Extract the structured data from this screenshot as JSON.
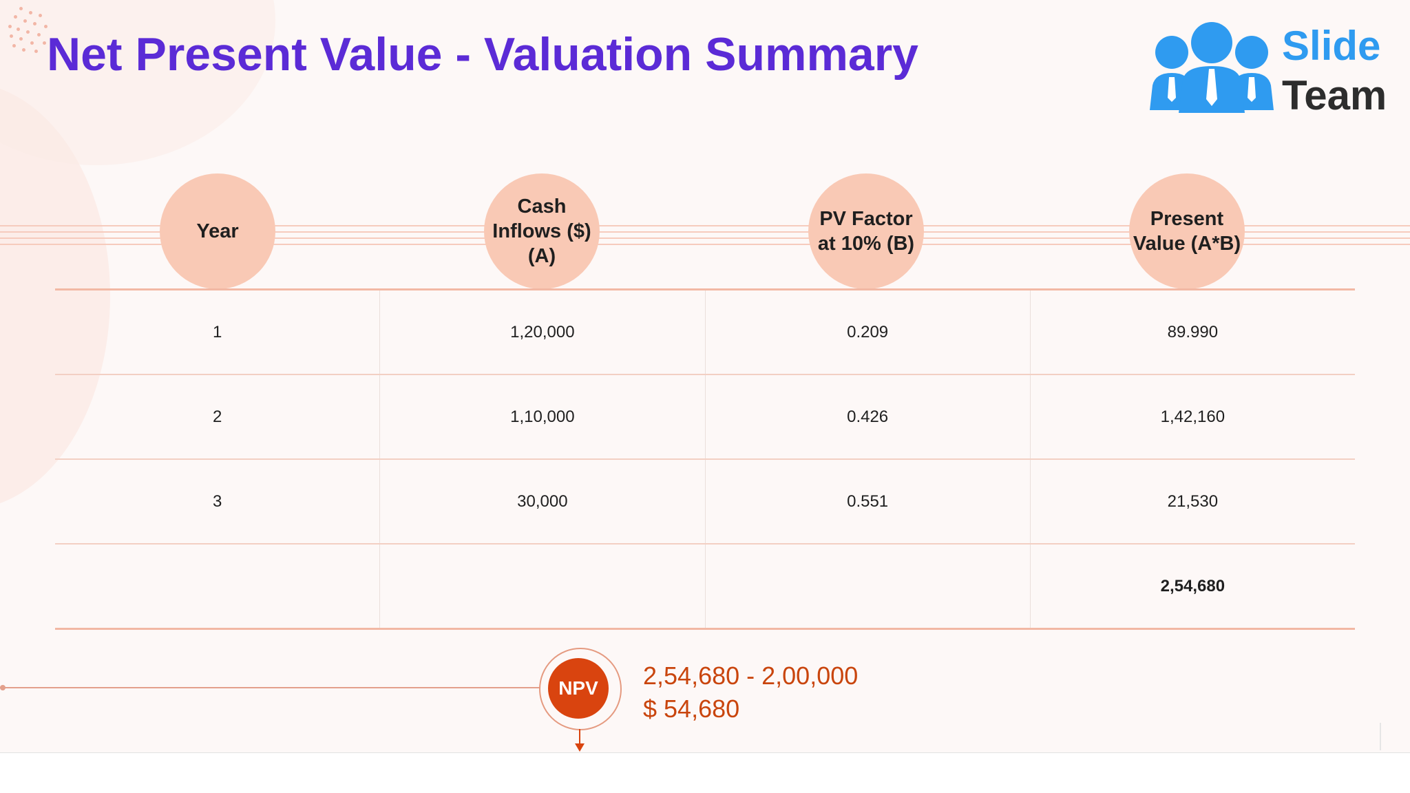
{
  "title": "Net Present Value - Valuation Summary",
  "logo": {
    "line1": "Slide",
    "line2": "Team",
    "icon": "people-group-icon"
  },
  "table": {
    "headers": [
      "Year",
      "Cash Inflows ($) (A)",
      "PV Factor at 10% (B)",
      "Present Value (A*B)"
    ],
    "rows": [
      [
        "1",
        "1,20,000",
        "0.209",
        "89.990"
      ],
      [
        "2",
        "1,10,000",
        "0.426",
        "1,42,160"
      ],
      [
        "3",
        "30,000",
        "0.551",
        "21,530"
      ],
      [
        "",
        "",
        "",
        "2,54,680"
      ]
    ]
  },
  "npv": {
    "label": "NPV",
    "line1": "2,54,680 - 2,00,000",
    "line2": "$ 54,680"
  },
  "colors": {
    "title": "#5b2bd6",
    "header_circle": "#f9c9b5",
    "npv_accent": "#d9440f",
    "logo_blue": "#2f9bf0"
  }
}
